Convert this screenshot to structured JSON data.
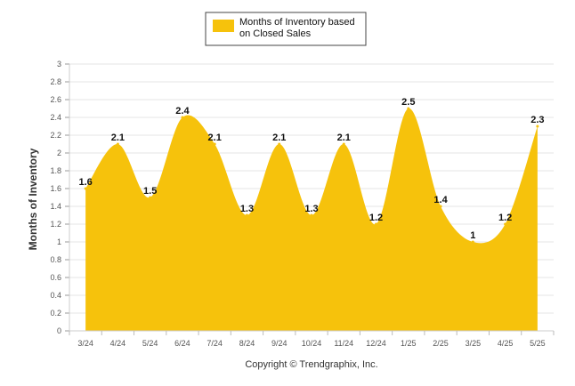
{
  "chart_data": {
    "type": "area",
    "categories": [
      "3/24",
      "4/24",
      "5/24",
      "6/24",
      "7/24",
      "8/24",
      "9/24",
      "10/24",
      "11/24",
      "12/24",
      "1/25",
      "2/25",
      "3/25",
      "4/25",
      "5/25"
    ],
    "series": [
      {
        "name": "Months of Inventory based on Closed Sales",
        "values": [
          1.6,
          2.1,
          1.5,
          2.4,
          2.1,
          1.3,
          2.1,
          1.3,
          2.1,
          1.2,
          2.5,
          1.4,
          1,
          1.2,
          2.3
        ],
        "data_labels": [
          "1.6",
          "2.1",
          "1.5",
          "2.4",
          "2.1",
          "1.3",
          "2.1",
          "1.3",
          "2.1",
          "1.2",
          "2.5",
          "1.4",
          "1",
          "1.2",
          "2.3"
        ]
      }
    ],
    "ylabel": "Months of Inventory",
    "ylim": [
      0,
      3
    ],
    "yticks": [
      "0",
      "0.2",
      "0.4",
      "0.6",
      "0.8",
      "1",
      "1.2",
      "1.4",
      "1.6",
      "1.8",
      "2",
      "2.2",
      "2.4",
      "2.6",
      "2.8",
      "3"
    ],
    "grid": true,
    "legend_position": "top-center",
    "colors": {
      "area": "#f6c20c",
      "legend_border": "#444444",
      "grid": "#e6e6e6"
    }
  },
  "footer": {
    "copyright": "Copyright © Trendgraphix, Inc."
  }
}
